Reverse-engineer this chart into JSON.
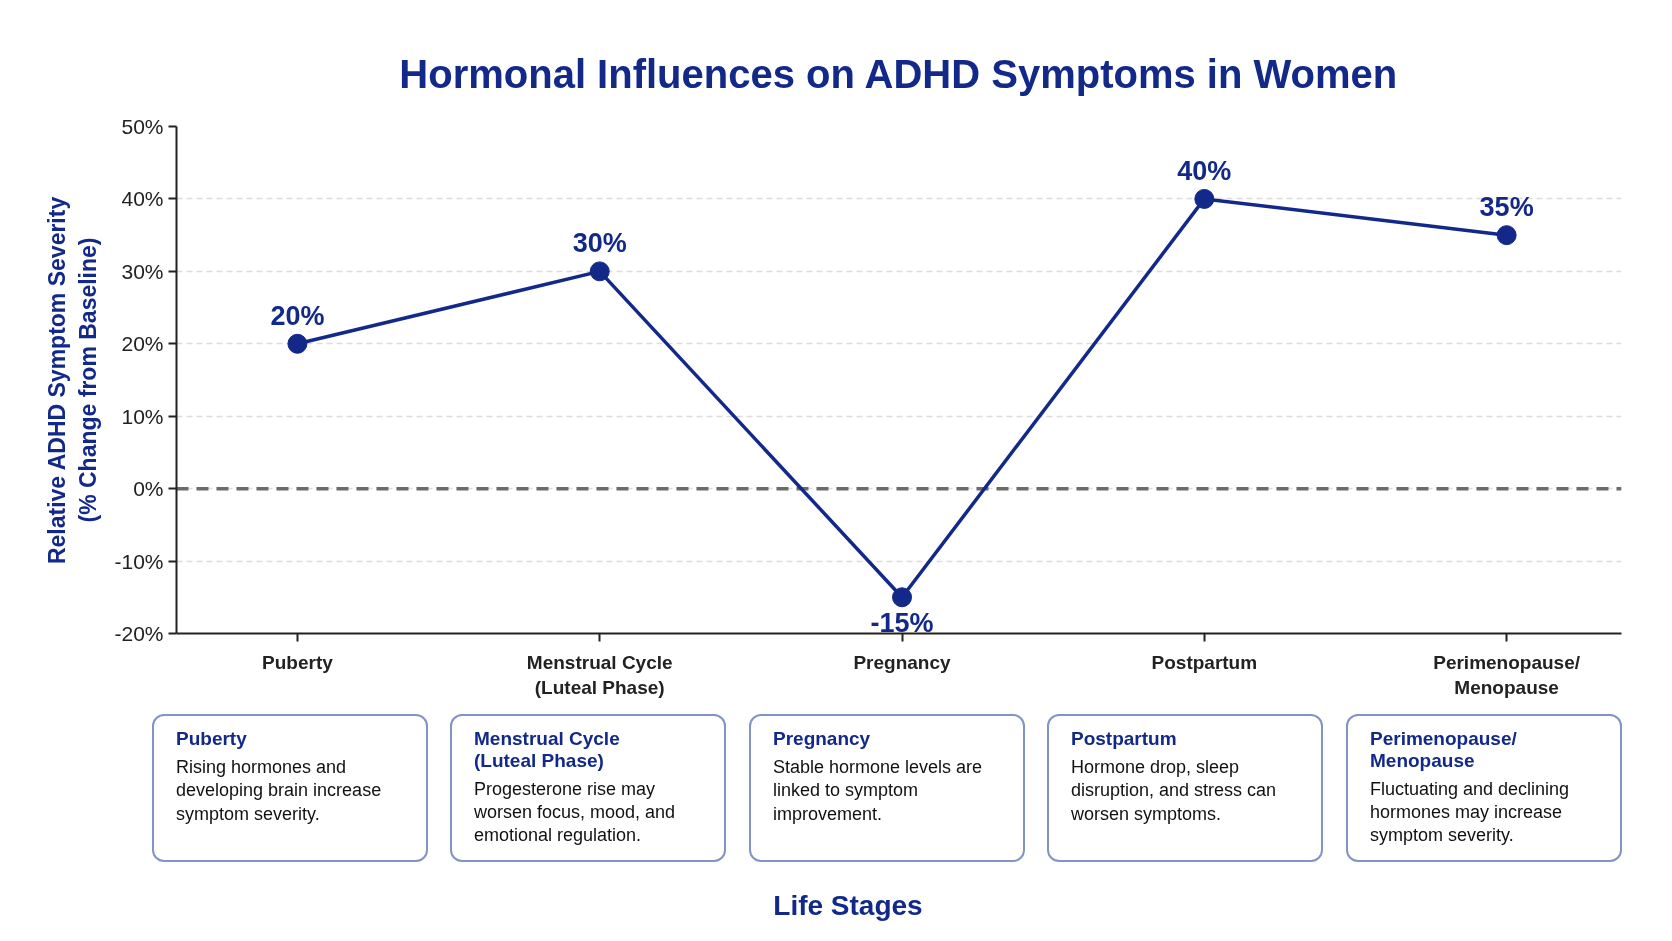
{
  "chart_data": {
    "type": "line",
    "title": "Hormonal Influences on ADHD Symptoms in Women",
    "ylabel": "Relative ADHD Symptom Severity\n(% Change from Baseline)",
    "categories": [
      "Puberty",
      "Menstrual Cycle\n(Luteal Phase)",
      "Pregnancy",
      "Postpartum",
      "Perimenopause/\nMenopause"
    ],
    "series": [
      {
        "color": "#13298a",
        "values": [
          20,
          30,
          -15,
          40,
          35
        ],
        "value_labels": [
          "20%",
          "30%",
          "-15%",
          "40%",
          "35%"
        ]
      }
    ],
    "ylim": [
      -20,
      50
    ],
    "yticks": [
      {
        "value": -20,
        "label": "-20%"
      },
      {
        "value": -10,
        "label": "-10%"
      },
      {
        "value": 0,
        "label": "0%"
      },
      {
        "value": 10,
        "label": "10%"
      },
      {
        "value": 20,
        "label": "20%"
      },
      {
        "value": 30,
        "label": "30%"
      },
      {
        "value": 40,
        "label": "40%"
      },
      {
        "value": 50,
        "label": "50%"
      }
    ],
    "grid": "y",
    "marker": "circle",
    "line_style": "solid",
    "ref_lines": [
      {
        "axis": "y",
        "value": 0,
        "color": "#6b6b6b",
        "line_style": "dashed"
      }
    ],
    "annotations": [
      "Puberty",
      "Rising hormones and developing brain increase symptom severity.",
      "Menstrual Cycle\n(Luteal Phase)",
      "Progesterone rise may worsen focus, mood, and emotional regulation.",
      "Pregnancy",
      "Stable hormone levels are linked to symptom improvement.",
      "Postpartum",
      "Hormone drop, sleep disruption, and stress can worsen symptoms.",
      "Perimenopause/\nMenopause",
      "Fluctuating and declining hormones may increase symptom severity.",
      "Life Stages"
    ]
  }
}
